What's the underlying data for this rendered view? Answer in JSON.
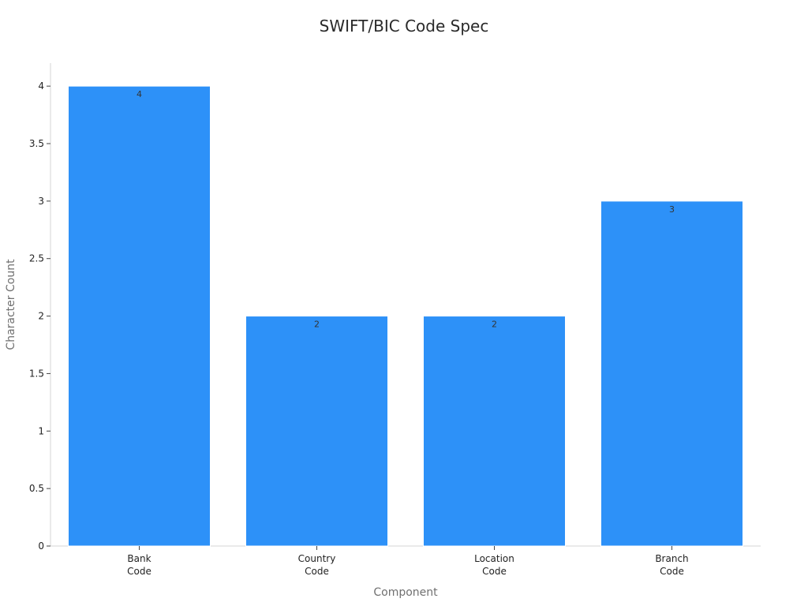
{
  "chart_data": {
    "type": "bar",
    "title": "SWIFT/BIC Code Spec",
    "xlabel": "Component",
    "ylabel": "Character Count",
    "categories": [
      [
        "Bank",
        "Code"
      ],
      [
        "Country",
        "Code"
      ],
      [
        "Location",
        "Code"
      ],
      [
        "Branch",
        "Code"
      ]
    ],
    "values": [
      4,
      2,
      2,
      3
    ],
    "data_labels": [
      "4",
      "2",
      "2",
      "3"
    ],
    "ylim": [
      0,
      4.2
    ],
    "yticks": [
      0,
      0.5,
      1,
      1.5,
      2,
      2.5,
      3,
      3.5,
      4
    ],
    "ytick_labels": [
      "0",
      "0.5",
      "1",
      "1.5",
      "2",
      "2.5",
      "3",
      "3.5",
      "4"
    ],
    "grid": false,
    "legend": "none",
    "bar_color": "#2d91f8"
  }
}
